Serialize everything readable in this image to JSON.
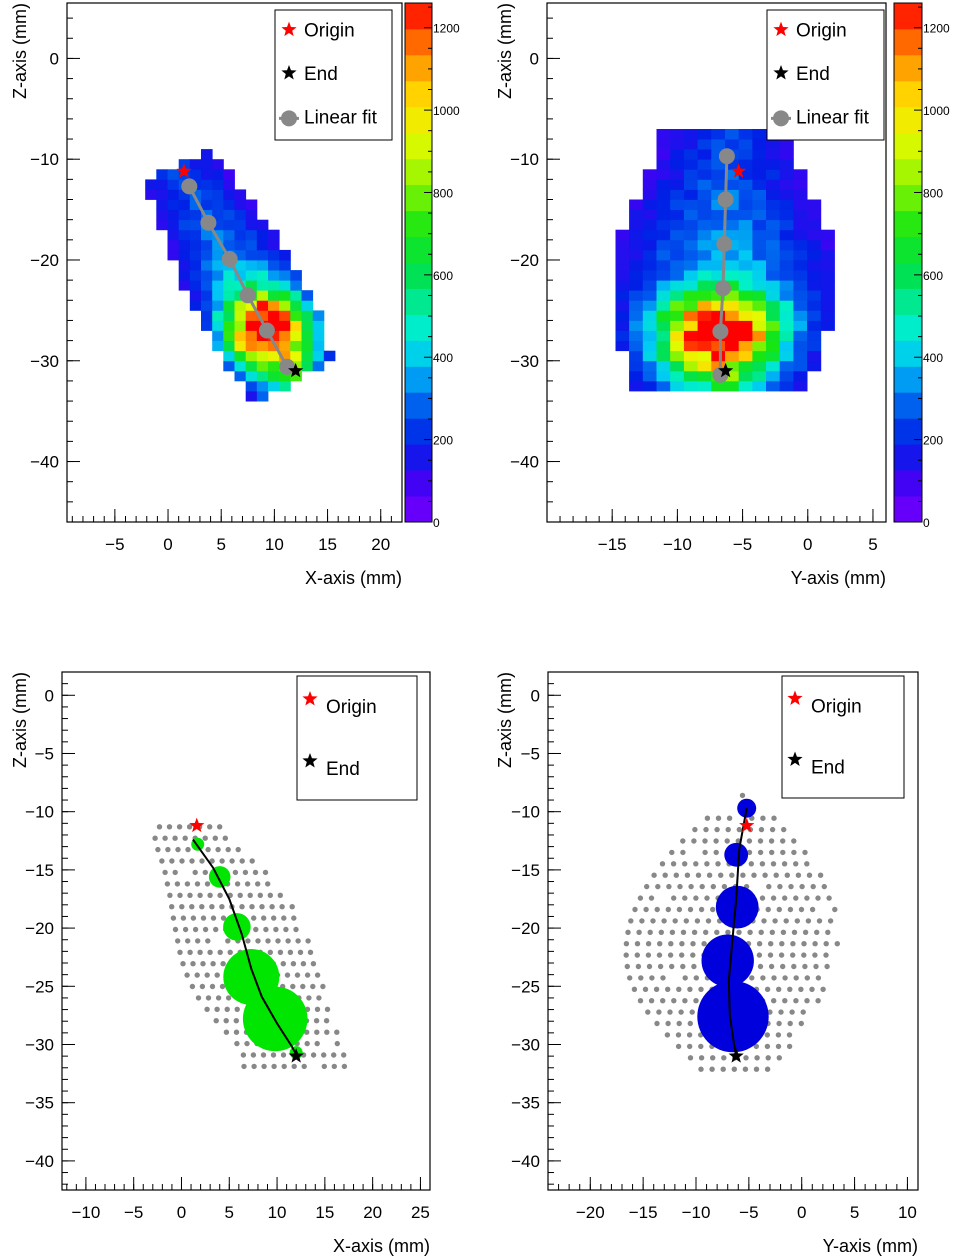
{
  "colors": {
    "origin_star": "#ff0000",
    "end_star": "#000000",
    "fit_line": "#888888",
    "grid_points": "#888888",
    "panel3_bubbles": "#00e600",
    "panel4_bubbles": "#0000dd",
    "track_line": "#000000"
  },
  "chart_data": [
    {
      "type": "heatmap",
      "xlabel": "X-axis (mm)",
      "ylabel": "Z-axis (mm)",
      "xlim": [
        -9.5,
        22
      ],
      "ylim": [
        -46,
        5.5
      ],
      "xticks": [
        -5,
        0,
        5,
        10,
        15,
        20
      ],
      "yticks": [
        0,
        -10,
        -20,
        -30,
        -40
      ],
      "xtick_labels": [
        "−5",
        "0",
        "5",
        "10",
        "15",
        "20"
      ],
      "ytick_labels": [
        "0",
        "−10",
        "−20",
        "−30",
        "−40"
      ],
      "colorbar": {
        "min": 0,
        "max": 1260,
        "ticks": [
          0,
          200,
          400,
          600,
          800,
          1000,
          1200
        ],
        "tick_labels": [
          "0",
          "200",
          "400",
          "600",
          "800",
          "1000",
          "1200"
        ]
      },
      "legend": {
        "placement": "top-right",
        "entries": [
          "Origin",
          "End",
          "Linear fit"
        ]
      },
      "origin": [
        1.5,
        -11.2
      ],
      "end": [
        12,
        -31
      ],
      "fit_points": [
        [
          2,
          -12.7
        ],
        [
          3.8,
          -16.3
        ],
        [
          5.8,
          -19.9
        ],
        [
          7.5,
          -23.5
        ],
        [
          9.3,
          -27
        ],
        [
          11.2,
          -30.6
        ]
      ],
      "grid": false
    },
    {
      "type": "heatmap",
      "xlabel": "Y-axis (mm)",
      "ylabel": "Z-axis (mm)",
      "xlim": [
        -20,
        6
      ],
      "ylim": [
        -46,
        5.5
      ],
      "xticks": [
        -15,
        -10,
        -5,
        0,
        5
      ],
      "yticks": [
        0,
        -10,
        -20,
        -30,
        -40
      ],
      "xtick_labels": [
        "−15",
        "−10",
        "−5",
        "0",
        "5"
      ],
      "ytick_labels": [
        "0",
        "−10",
        "−20",
        "−30",
        "−40"
      ],
      "colorbar": {
        "min": 0,
        "max": 1260,
        "ticks": [
          0,
          200,
          400,
          600,
          800,
          1000,
          1200
        ],
        "tick_labels": [
          "0",
          "200",
          "400",
          "600",
          "800",
          "1000",
          "1200"
        ]
      },
      "legend": {
        "placement": "top-right",
        "entries": [
          "Origin",
          "End",
          "Linear fit"
        ]
      },
      "origin": [
        -5.3,
        -11.2
      ],
      "end": [
        -6.3,
        -31
      ],
      "fit_points": [
        [
          -6.2,
          -9.7
        ],
        [
          -6.3,
          -14
        ],
        [
          -6.4,
          -18.4
        ],
        [
          -6.5,
          -22.8
        ],
        [
          -6.7,
          -27.1
        ],
        [
          -6.7,
          -31.4
        ]
      ],
      "grid": false
    },
    {
      "type": "scatter",
      "xlabel": "X-axis (mm)",
      "ylabel": "Z-axis (mm)",
      "xlim": [
        -12.5,
        26
      ],
      "ylim": [
        -42.5,
        2
      ],
      "xticks": [
        -10,
        -5,
        0,
        5,
        10,
        15,
        20,
        25
      ],
      "yticks": [
        0,
        -5,
        -10,
        -15,
        -20,
        -25,
        -30,
        -35,
        -40
      ],
      "xtick_labels": [
        "−10",
        "−5",
        "0",
        "5",
        "10",
        "15",
        "20",
        "25"
      ],
      "ytick_labels": [
        "0",
        "−5",
        "−10",
        "−15",
        "−20",
        "−25",
        "−30",
        "−35",
        "−40"
      ],
      "legend": {
        "placement": "top-right",
        "entries": [
          "Origin",
          "End"
        ]
      },
      "origin": [
        1.6,
        -11.2
      ],
      "end": [
        12,
        -31
      ],
      "bubbles": [
        [
          1.7,
          -12.8,
          1.5
        ],
        [
          4,
          -15.6,
          2.5
        ],
        [
          5.8,
          -19.9,
          3.2
        ],
        [
          7.3,
          -24.2,
          6.5
        ],
        [
          9.8,
          -27.8,
          7.5
        ],
        [
          12,
          -30.7,
          1.5
        ]
      ],
      "track": [
        [
          1.2,
          -12.4
        ],
        [
          3.3,
          -14.8
        ],
        [
          5,
          -17.5
        ],
        [
          6.3,
          -20.5
        ],
        [
          7.3,
          -23.5
        ],
        [
          8.4,
          -25.9
        ],
        [
          10,
          -28.2
        ],
        [
          11.5,
          -30.1
        ],
        [
          12.1,
          -31
        ]
      ],
      "grid": false
    },
    {
      "type": "scatter",
      "xlabel": "Y-axis (mm)",
      "ylabel": "Z-axis (mm)",
      "xlim": [
        -24,
        11
      ],
      "ylim": [
        -42.5,
        2
      ],
      "xticks": [
        -20,
        -15,
        -10,
        -5,
        0,
        5,
        10
      ],
      "yticks": [
        0,
        -5,
        -10,
        -15,
        -20,
        -25,
        -30,
        -35,
        -40
      ],
      "xtick_labels": [
        "−20",
        "−15",
        "−10",
        "−5",
        "0",
        "5",
        "10"
      ],
      "ytick_labels": [
        "0",
        "−5",
        "−10",
        "−15",
        "−20",
        "−25",
        "−30",
        "−35",
        "−40"
      ],
      "legend": {
        "placement": "top-right",
        "entries": [
          "Origin",
          "End"
        ]
      },
      "origin": [
        -5.2,
        -11.2
      ],
      "end": [
        -6.2,
        -31
      ],
      "bubbles": [
        [
          -5.2,
          -9.7,
          2
        ],
        [
          -6.2,
          -13.7,
          2.5
        ],
        [
          -6.1,
          -18.2,
          4.5
        ],
        [
          -7,
          -22.8,
          5.5
        ],
        [
          -6.5,
          -27.6,
          7.5
        ]
      ],
      "track": [
        [
          -5.2,
          -9.7
        ],
        [
          -5.9,
          -13.2
        ],
        [
          -6.2,
          -17.5
        ],
        [
          -6.6,
          -21.5
        ],
        [
          -6.9,
          -24.5
        ],
        [
          -6.8,
          -27.5
        ],
        [
          -6.4,
          -30
        ],
        [
          -6.2,
          -31
        ]
      ],
      "grid": false
    }
  ]
}
